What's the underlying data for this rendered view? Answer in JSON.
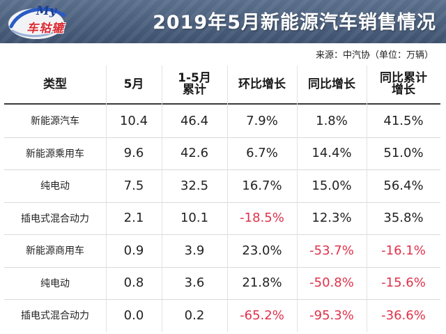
{
  "banner": {
    "title": "2019年5月新能源汽车销售情况"
  },
  "logo": {
    "prefix": "My",
    "name": "车轱辘"
  },
  "source": "来源：中汽协（单位：万辆）",
  "headers": [
    "类型",
    "5月",
    "1-5月累计",
    "环比增长",
    "同比增长",
    "同比累计增长"
  ],
  "rows": [
    {
      "type": "新能源汽车",
      "may": "10.4",
      "ytd": "46.4",
      "mom": "7.9%",
      "yoy": "1.8%",
      "ytd_yoy": "41.5%",
      "neg": [
        false,
        false,
        false
      ]
    },
    {
      "type": "新能源乘用车",
      "may": "9.6",
      "ytd": "42.6",
      "mom": "6.7%",
      "yoy": "14.4%",
      "ytd_yoy": "51.0%",
      "neg": [
        false,
        false,
        false
      ]
    },
    {
      "type": "纯电动",
      "may": "7.5",
      "ytd": "32.5",
      "mom": "16.7%",
      "yoy": "15.0%",
      "ytd_yoy": "56.4%",
      "neg": [
        false,
        false,
        false
      ]
    },
    {
      "type": "插电式混合动力",
      "may": "2.1",
      "ytd": "10.1",
      "mom": "-18.5%",
      "yoy": "12.3%",
      "ytd_yoy": "35.8%",
      "neg": [
        true,
        false,
        false
      ]
    },
    {
      "type": "新能源商用车",
      "may": "0.9",
      "ytd": "3.9",
      "mom": "23.0%",
      "yoy": "-53.7%",
      "ytd_yoy": "-16.1%",
      "neg": [
        false,
        true,
        true
      ]
    },
    {
      "type": "纯电动",
      "may": "0.8",
      "ytd": "3.6",
      "mom": "21.8%",
      "yoy": "-50.8%",
      "ytd_yoy": "-15.6%",
      "neg": [
        false,
        true,
        true
      ]
    },
    {
      "type": "插电式混合动力",
      "may": "0.0",
      "ytd": "0.2",
      "mom": "-65.2%",
      "yoy": "-95.3%",
      "ytd_yoy": "-36.6%",
      "neg": [
        true,
        true,
        true
      ]
    }
  ],
  "colors": {
    "banner": "#4a5e7c",
    "negative": "#e0314a",
    "logo_red": "#d92b34",
    "logo_blue": "#1b3f8f"
  }
}
